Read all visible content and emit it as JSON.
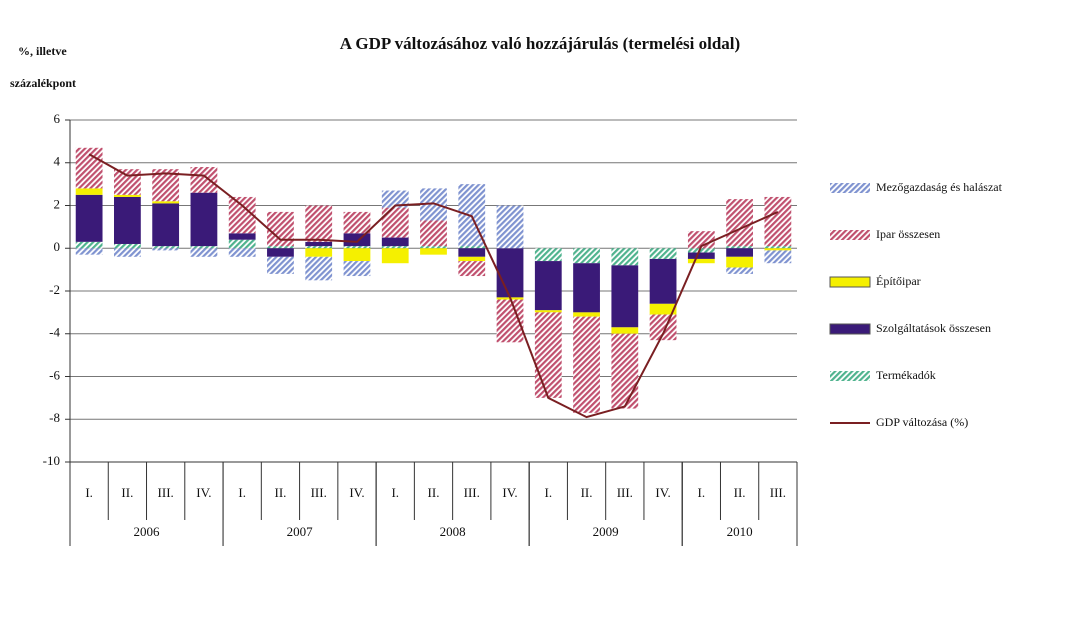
{
  "chart_data": {
    "type": "bar",
    "title": "A GDP változásához  való hozzájárulás (termelési oldal)",
    "y_label": [
      "%, illetve",
      "százalékpont"
    ],
    "categories": [
      "I.",
      "II.",
      "III.",
      "IV.",
      "I.",
      "II.",
      "III.",
      "IV.",
      "I.",
      "II.",
      "III.",
      "IV.",
      "I.",
      "II.",
      "III.",
      "IV.",
      "I.",
      "II.",
      "III."
    ],
    "groups": [
      {
        "label": "2006",
        "size": 4
      },
      {
        "label": "2007",
        "size": 4
      },
      {
        "label": "2008",
        "size": 4
      },
      {
        "label": "2009",
        "size": 4
      },
      {
        "label": "2010",
        "size": 3
      }
    ],
    "ylim": [
      -10,
      6
    ],
    "yticks": [
      6,
      4,
      2,
      0,
      -2,
      -4,
      -6,
      -8,
      -10
    ],
    "grid": true,
    "series": [
      {
        "name": "Mezőgazdaság és halászat",
        "color": "#7f93d0",
        "hatched": true,
        "values": [
          -0.3,
          -0.4,
          -0.1,
          -0.4,
          -0.4,
          -0.8,
          -1.1,
          -0.7,
          0.8,
          1.5,
          2.9,
          2.0,
          0,
          0,
          0,
          0,
          0,
          -0.3,
          -0.6
        ]
      },
      {
        "name": "Ipar összesen",
        "color": "#c0506e",
        "hatched": true,
        "values": [
          1.9,
          1.2,
          1.5,
          1.2,
          1.7,
          1.6,
          1.7,
          1.0,
          1.4,
          1.2,
          -0.7,
          -2.0,
          -4.0,
          -4.5,
          -3.5,
          -1.2,
          0.8,
          2.2,
          2.3
        ]
      },
      {
        "name": "Építőipar",
        "color": "#f5f000",
        "hatched": false,
        "values": [
          0.3,
          0.1,
          0.1,
          0,
          0,
          0,
          -0.4,
          -0.6,
          -0.7,
          -0.3,
          -0.2,
          -0.1,
          -0.1,
          -0.2,
          -0.3,
          -0.5,
          -0.2,
          -0.5,
          -0.1
        ]
      },
      {
        "name": "Szolgáltatások összesen",
        "color": "#3a1a78",
        "hatched": false,
        "values": [
          2.2,
          2.2,
          2.0,
          2.5,
          0.3,
          -0.4,
          0.2,
          0.6,
          0.4,
          0,
          -0.4,
          -2.3,
          -2.3,
          -2.3,
          -2.9,
          -2.1,
          -0.3,
          -0.4,
          0
        ]
      },
      {
        "name": "Termékadók",
        "color": "#4fb38e",
        "hatched": true,
        "values": [
          0.3,
          0.2,
          0.1,
          0.1,
          0.4,
          0.1,
          0.1,
          0.1,
          0.1,
          0.1,
          0.1,
          0,
          -0.6,
          -0.7,
          -0.8,
          -0.5,
          -0.2,
          0.1,
          0.1
        ]
      },
      {
        "name": "GDP változása (%)",
        "color": "#7a1f22",
        "type": "line",
        "values": [
          4.4,
          3.4,
          3.5,
          3.4,
          2.0,
          0.4,
          0.4,
          0.3,
          2.0,
          2.1,
          1.5,
          -2.3,
          -7.0,
          -7.9,
          -7.4,
          -4.0,
          0.1,
          0.9,
          1.7
        ]
      }
    ]
  }
}
